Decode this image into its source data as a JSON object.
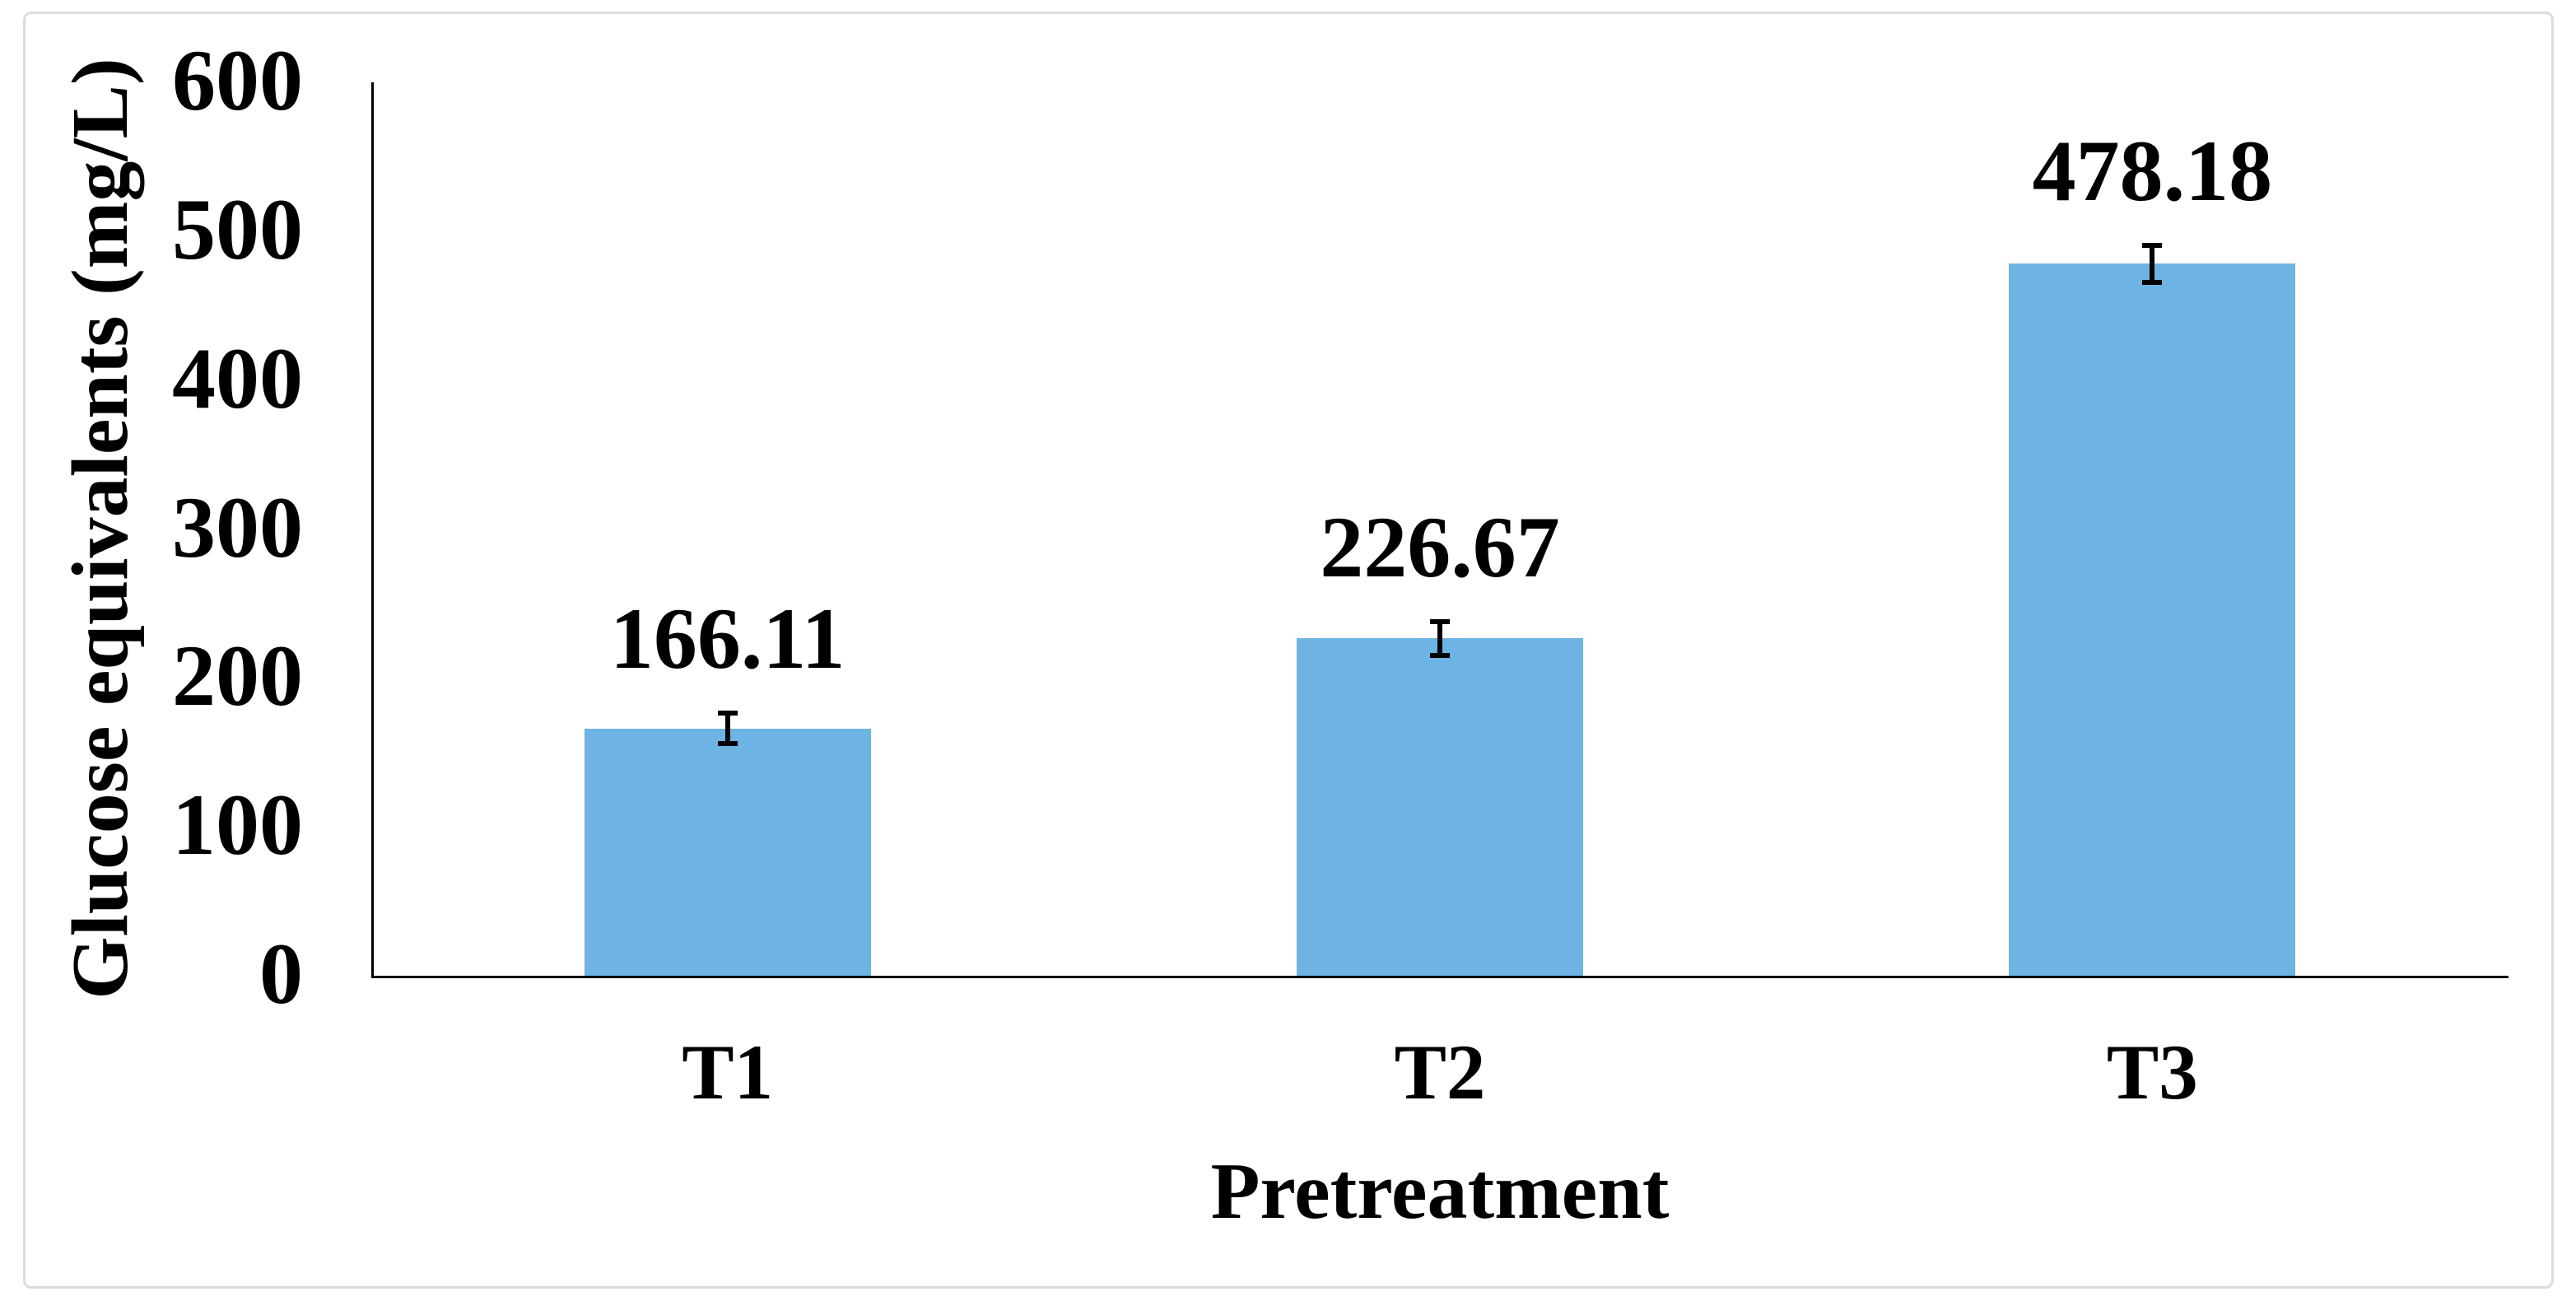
{
  "figure": {
    "background_color": "#ffffff",
    "border_color": "#dcdcdc"
  },
  "chart_data": {
    "type": "bar",
    "title": "",
    "categories": [
      "T1",
      "T2",
      "T3"
    ],
    "values": [
      166.11,
      226.67,
      478.18
    ],
    "data_labels": [
      "166.11",
      "226.67",
      "478.18"
    ],
    "error_bars": [
      12,
      13,
      14
    ],
    "xlabel": "Pretreatment",
    "ylabel": "Glucose equivalents (mg/L)",
    "ylim": [
      0,
      600
    ],
    "yticks": [
      0,
      100,
      200,
      300,
      400,
      500,
      600
    ],
    "grid": false,
    "legend": "none",
    "bar_color": "#6db3e3",
    "axis_color": "#000000",
    "error_bar_color": "#000000",
    "text_color": "#000000"
  }
}
